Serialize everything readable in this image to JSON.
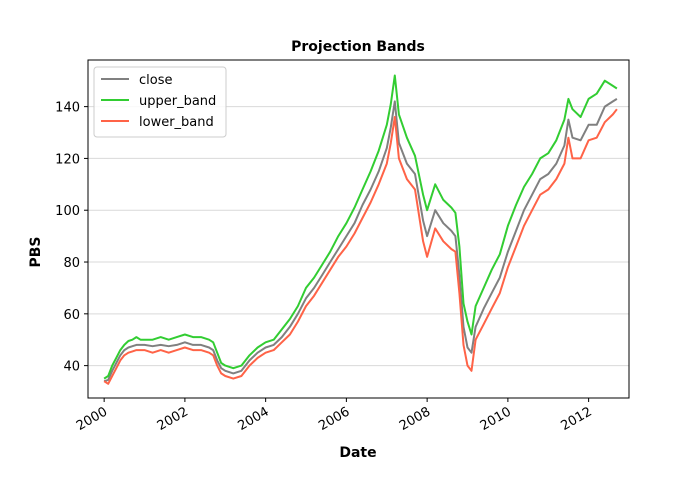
{
  "chart_data": {
    "type": "line",
    "title": "Projection Bands",
    "xlabel": "Date",
    "ylabel": "PBS",
    "x_range": [
      1999.6,
      2013.0
    ],
    "ylim": [
      27.5,
      158
    ],
    "x_ticks": [
      "2000",
      "2002",
      "2004",
      "2006",
      "2008",
      "2010",
      "2012"
    ],
    "y_ticks": [
      "40",
      "60",
      "80",
      "100",
      "120",
      "140"
    ],
    "grid": "horizontal",
    "legend_position": "top-left",
    "series": [
      {
        "name": "close",
        "color": "#808080",
        "x": [
          2000.0,
          2000.1,
          2000.2,
          2000.3,
          2000.4,
          2000.5,
          2000.6,
          2000.7,
          2000.8,
          2000.9,
          2001.0,
          2001.2,
          2001.4,
          2001.6,
          2001.8,
          2002.0,
          2002.2,
          2002.4,
          2002.6,
          2002.7,
          2002.8,
          2002.9,
          2003.0,
          2003.2,
          2003.4,
          2003.6,
          2003.8,
          2004.0,
          2004.2,
          2004.4,
          2004.6,
          2004.8,
          2005.0,
          2005.2,
          2005.4,
          2005.6,
          2005.8,
          2006.0,
          2006.2,
          2006.4,
          2006.6,
          2006.8,
          2007.0,
          2007.1,
          2007.2,
          2007.3,
          2007.5,
          2007.7,
          2007.9,
          2008.0,
          2008.2,
          2008.4,
          2008.6,
          2008.7,
          2008.8,
          2008.9,
          2009.0,
          2009.1,
          2009.2,
          2009.4,
          2009.6,
          2009.8,
          2010.0,
          2010.2,
          2010.4,
          2010.6,
          2010.8,
          2011.0,
          2011.2,
          2011.4,
          2011.5,
          2011.6,
          2011.8,
          2012.0,
          2012.2,
          2012.4,
          2012.6,
          2012.7
        ],
        "values": [
          34,
          34.5,
          38,
          41,
          44,
          46,
          47,
          47.5,
          48,
          48,
          48,
          47.5,
          48,
          47.5,
          48,
          49,
          48,
          48,
          47,
          46,
          42,
          39,
          38,
          37,
          38,
          42,
          45,
          47,
          48,
          51,
          55,
          60,
          66,
          70,
          75,
          80,
          85,
          90,
          95,
          102,
          108,
          115,
          124,
          132,
          142,
          126,
          118,
          114,
          96,
          90,
          100,
          95,
          92,
          90,
          75,
          55,
          47,
          45,
          55,
          62,
          68,
          74,
          84,
          92,
          100,
          106,
          112,
          114,
          118,
          125,
          135,
          128,
          127,
          133,
          133,
          140,
          142,
          143
        ]
      },
      {
        "name": "upper_band",
        "color": "#32cd32",
        "x": [
          2000.0,
          2000.1,
          2000.2,
          2000.3,
          2000.4,
          2000.5,
          2000.6,
          2000.7,
          2000.8,
          2000.9,
          2001.0,
          2001.2,
          2001.4,
          2001.6,
          2001.8,
          2002.0,
          2002.2,
          2002.4,
          2002.6,
          2002.7,
          2002.8,
          2002.9,
          2003.0,
          2003.2,
          2003.4,
          2003.6,
          2003.8,
          2004.0,
          2004.2,
          2004.4,
          2004.6,
          2004.8,
          2005.0,
          2005.2,
          2005.4,
          2005.6,
          2005.8,
          2006.0,
          2006.2,
          2006.4,
          2006.6,
          2006.8,
          2007.0,
          2007.1,
          2007.2,
          2007.3,
          2007.5,
          2007.7,
          2007.9,
          2008.0,
          2008.2,
          2008.4,
          2008.6,
          2008.7,
          2008.8,
          2008.9,
          2009.0,
          2009.1,
          2009.2,
          2009.4,
          2009.6,
          2009.8,
          2010.0,
          2010.2,
          2010.4,
          2010.6,
          2010.8,
          2011.0,
          2011.2,
          2011.4,
          2011.5,
          2011.6,
          2011.8,
          2012.0,
          2012.2,
          2012.4,
          2012.6,
          2012.7
        ],
        "values": [
          35,
          36,
          40,
          43,
          46,
          48,
          49.5,
          50,
          51,
          50,
          50,
          50,
          51,
          50,
          51,
          52,
          51,
          51,
          50,
          49,
          45,
          41,
          40,
          39,
          40,
          44,
          47,
          49,
          50,
          54,
          58,
          63,
          70,
          74,
          79,
          84,
          90,
          95,
          101,
          108,
          115,
          123,
          133,
          141,
          152,
          137,
          128,
          121,
          106,
          100,
          110,
          104,
          101,
          99,
          86,
          64,
          57,
          52,
          63,
          70,
          77,
          83,
          94,
          102,
          109,
          114,
          120,
          122,
          127,
          135,
          143,
          139,
          136,
          143,
          145,
          150,
          148,
          147
        ]
      },
      {
        "name": "lower_band",
        "color": "#ff6347",
        "x": [
          2000.0,
          2000.1,
          2000.2,
          2000.3,
          2000.4,
          2000.5,
          2000.6,
          2000.7,
          2000.8,
          2000.9,
          2001.0,
          2001.2,
          2001.4,
          2001.6,
          2001.8,
          2002.0,
          2002.2,
          2002.4,
          2002.6,
          2002.7,
          2002.8,
          2002.9,
          2003.0,
          2003.2,
          2003.4,
          2003.6,
          2003.8,
          2004.0,
          2004.2,
          2004.4,
          2004.6,
          2004.8,
          2005.0,
          2005.2,
          2005.4,
          2005.6,
          2005.8,
          2006.0,
          2006.2,
          2006.4,
          2006.6,
          2006.8,
          2007.0,
          2007.1,
          2007.2,
          2007.3,
          2007.5,
          2007.7,
          2007.9,
          2008.0,
          2008.2,
          2008.4,
          2008.6,
          2008.7,
          2008.8,
          2008.9,
          2009.0,
          2009.1,
          2009.2,
          2009.4,
          2009.6,
          2009.8,
          2010.0,
          2010.2,
          2010.4,
          2010.6,
          2010.8,
          2011.0,
          2011.2,
          2011.4,
          2011.5,
          2011.6,
          2011.8,
          2012.0,
          2012.2,
          2012.4,
          2012.6,
          2012.7
        ],
        "values": [
          34,
          33,
          36,
          39,
          42,
          44,
          45,
          45.5,
          46,
          46,
          46,
          45,
          46,
          45,
          46,
          47,
          46,
          46,
          45,
          44,
          40,
          37,
          36,
          35,
          36,
          40,
          43,
          45,
          46,
          49,
          52,
          57,
          63,
          67,
          72,
          77,
          82,
          86,
          91,
          97,
          103,
          110,
          118,
          126,
          136,
          120,
          112,
          108,
          88,
          82,
          93,
          88,
          85,
          84,
          68,
          48,
          40,
          38,
          50,
          56,
          62,
          68,
          78,
          86,
          94,
          100,
          106,
          108,
          112,
          118,
          128,
          120,
          120,
          127,
          128,
          134,
          137,
          139
        ]
      }
    ]
  }
}
